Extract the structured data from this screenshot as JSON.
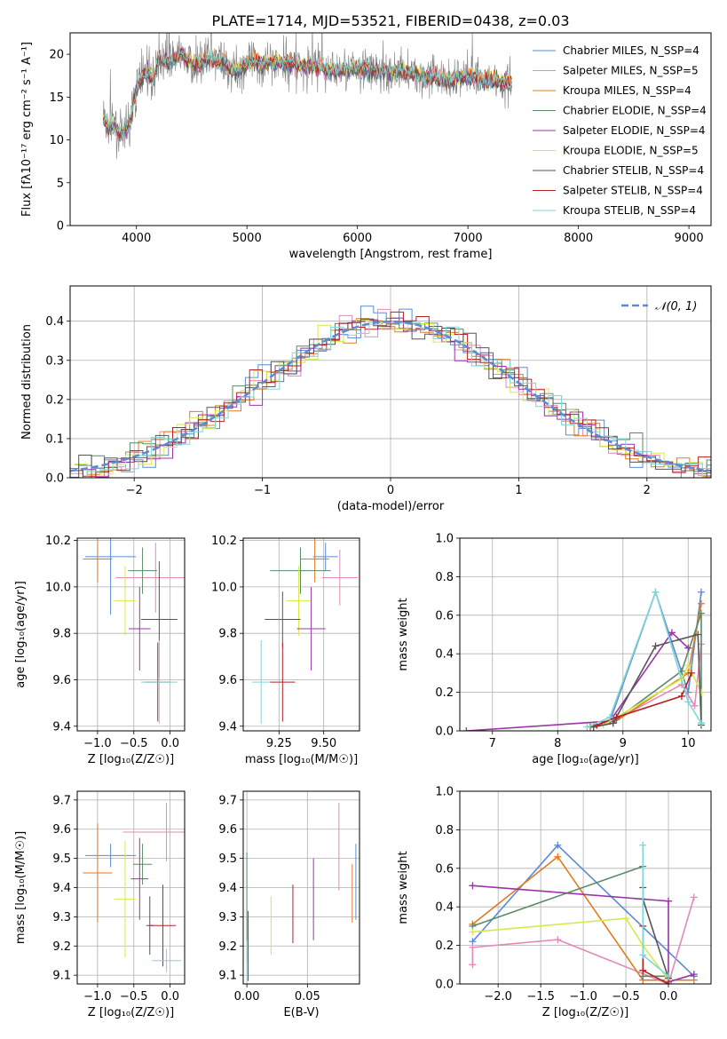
{
  "figure_title": "PLATE=1714, MJD=53521, FIBERID=0438, z=0.03",
  "colors": {
    "chabrier_miles": "#5b8bd6",
    "salpeter_miles": "#e38ab8",
    "kroupa_miles": "#e07b24",
    "chabrier_elodie": "#5a8a66",
    "salpeter_elodie": "#9a35a8",
    "kroupa_elodie": "#d8e84a",
    "chabrier_stelib": "#555555",
    "salpeter_stelib": "#b52222",
    "kroupa_stelib": "#7fd6d6",
    "data_gray": "#808080",
    "normal_dash": "#5b8bd6",
    "grid": "#b0b0b0"
  },
  "legend_spectrum": [
    {
      "label": "Chabrier MILES, N_SSP=4",
      "color_key": "chabrier_miles"
    },
    {
      "label": "Salpeter MILES, N_SSP=5",
      "color_key": "salpeter_miles"
    },
    {
      "label": "Kroupa MILES, N_SSP=4",
      "color_key": "kroupa_miles"
    },
    {
      "label": "Chabrier ELODIE, N_SSP=4",
      "color_key": "chabrier_elodie"
    },
    {
      "label": "Salpeter ELODIE, N_SSP=4",
      "color_key": "salpeter_elodie"
    },
    {
      "label": "Kroupa ELODIE, N_SSP=5",
      "color_key": "kroupa_elodie"
    },
    {
      "label": "Chabrier STELIB, N_SSP=4",
      "color_key": "chabrier_stelib"
    },
    {
      "label": "Salpeter STELIB, N_SSP=4",
      "color_key": "salpeter_stelib"
    },
    {
      "label": "Kroupa STELIB, N_SSP=4",
      "color_key": "kroupa_stelib"
    }
  ],
  "legend_hist": "𝒩(0, 1)",
  "chart_data": [
    {
      "id": "spectrum",
      "type": "line",
      "xlabel": "wavelength [Angstrom, rest frame]",
      "ylabel": "Flux [fλ10⁻¹⁷ erg cm⁻² s⁻¹ A⁻¹]",
      "xlim": [
        3400,
        9200
      ],
      "ylim": [
        0,
        22.5
      ],
      "xticks": [
        4000,
        5000,
        6000,
        7000,
        8000,
        9000
      ],
      "yticks": [
        0,
        5,
        10,
        15,
        20
      ],
      "grid": false,
      "legend_position": "top-right",
      "x": [
        3700,
        3750,
        3800,
        3850,
        3900,
        3950,
        4000,
        4050,
        4100,
        4150,
        4200,
        4300,
        4400,
        4500,
        4600,
        4700,
        4800,
        4900,
        5000,
        5200,
        5400,
        5600,
        5800,
        6000,
        6200,
        6400,
        6600,
        6800,
        7000,
        7200,
        7400
      ],
      "y": [
        12.5,
        11.5,
        12.0,
        10.5,
        11.0,
        12.5,
        16.0,
        17.5,
        18.0,
        17.0,
        19.5,
        19.0,
        20.0,
        19.0,
        19.0,
        19.5,
        19.0,
        18.0,
        19.0,
        19.0,
        19.0,
        18.5,
        18.0,
        18.5,
        18.0,
        18.0,
        17.5,
        17.0,
        17.5,
        17.0,
        16.5
      ]
    },
    {
      "id": "residuals",
      "type": "histogram",
      "xlabel": "(data-model)/error",
      "ylabel": "Normed distribution",
      "xlim": [
        -2.5,
        2.5
      ],
      "ylim": [
        0,
        0.49
      ],
      "xticks": [
        -2,
        -1,
        0,
        1,
        2
      ],
      "yticks": [
        0.0,
        0.1,
        0.2,
        0.3,
        0.4
      ],
      "grid": true,
      "legend_position": "top-right",
      "bin_edges_start": -2.5,
      "bin_width": 0.1,
      "normal_curve": {
        "mu": 0,
        "sigma": 1
      }
    },
    {
      "id": "age_vs_Z",
      "type": "errorbar",
      "xlabel": "Z [log₁₀(Z/Z☉)]",
      "ylabel": "age  [log₁₀(age/yr)]",
      "xlim": [
        -1.28,
        0.2
      ],
      "ylim": [
        9.38,
        10.21
      ],
      "xticks": [
        -1.0,
        -0.5,
        0.0
      ],
      "yticks": [
        9.4,
        9.6,
        9.8,
        10.0,
        10.2
      ],
      "grid": true,
      "points": [
        {
          "series": "chabrier_miles",
          "x": -0.82,
          "y": 10.13,
          "xerr": 0.35,
          "yerr": 0.25
        },
        {
          "series": "kroupa_miles",
          "x": -1.0,
          "y": 10.12,
          "xerr": 0.2,
          "yerr": 0.1
        },
        {
          "series": "salpeter_miles",
          "x": -0.2,
          "y": 10.04,
          "xerr": 0.55,
          "yerr": 0.15
        },
        {
          "series": "chabrier_elodie",
          "x": -0.38,
          "y": 10.07,
          "xerr": 0.2,
          "yerr": 0.1
        },
        {
          "series": "kroupa_elodie",
          "x": -0.62,
          "y": 9.94,
          "xerr": 0.15,
          "yerr": 0.15
        },
        {
          "series": "salpeter_elodie",
          "x": -0.42,
          "y": 9.82,
          "xerr": 0.15,
          "yerr": 0.18
        },
        {
          "series": "chabrier_stelib",
          "x": -0.15,
          "y": 9.86,
          "xerr": 0.25,
          "yerr": 0.25
        },
        {
          "series": "salpeter_stelib",
          "x": -0.17,
          "y": 9.59,
          "xerr": 0.18,
          "yerr": 0.17
        },
        {
          "series": "kroupa_stelib",
          "x": -0.15,
          "y": 9.59,
          "xerr": 0.25,
          "yerr": 0.18
        }
      ]
    },
    {
      "id": "age_vs_mass",
      "type": "errorbar",
      "xlabel": "mass [log₁₀(M/M☉)]",
      "ylabel": "",
      "xlim": [
        9.05,
        9.7
      ],
      "ylim": [
        9.38,
        10.21
      ],
      "xticks": [
        9.25,
        9.5
      ],
      "yticks": [
        9.4,
        9.6,
        9.8,
        10.0,
        10.2
      ],
      "grid": true,
      "points": [
        {
          "series": "chabrier_miles",
          "x": 9.51,
          "y": 10.13,
          "xerr": 0.07,
          "yerr": 0.06
        },
        {
          "series": "kroupa_miles",
          "x": 9.45,
          "y": 10.12,
          "xerr": 0.08,
          "yerr": 0.1
        },
        {
          "series": "salpeter_miles",
          "x": 9.59,
          "y": 10.04,
          "xerr": 0.1,
          "yerr": 0.12
        },
        {
          "series": "chabrier_elodie",
          "x": 9.37,
          "y": 10.07,
          "xerr": 0.17,
          "yerr": 0.1
        },
        {
          "series": "kroupa_elodie",
          "x": 9.36,
          "y": 9.94,
          "xerr": 0.07,
          "yerr": 0.15
        },
        {
          "series": "salpeter_elodie",
          "x": 9.43,
          "y": 9.82,
          "xerr": 0.08,
          "yerr": 0.18
        },
        {
          "series": "chabrier_stelib",
          "x": 9.27,
          "y": 9.86,
          "xerr": 0.1,
          "yerr": 0.12
        },
        {
          "series": "salpeter_stelib",
          "x": 9.27,
          "y": 9.59,
          "xerr": 0.07,
          "yerr": 0.17
        },
        {
          "series": "kroupa_stelib",
          "x": 9.15,
          "y": 9.59,
          "xerr": 0.05,
          "yerr": 0.18
        }
      ]
    },
    {
      "id": "weight_vs_age",
      "type": "line",
      "xlabel": "age  [log₁₀(age/yr)]",
      "ylabel": "mass weight",
      "xlim": [
        6.5,
        10.35
      ],
      "ylim": [
        0,
        1.0
      ],
      "xticks": [
        7,
        8,
        9,
        10
      ],
      "yticks": [
        0.0,
        0.2,
        0.4,
        0.6,
        0.8,
        1.0
      ],
      "grid": true,
      "series": [
        {
          "series": "chabrier_miles",
          "x": [
            8.5,
            8.8,
            9.5,
            10.0,
            10.2
          ],
          "y": [
            0.02,
            0.05,
            0.72,
            0.2,
            0.72
          ]
        },
        {
          "series": "salpeter_miles",
          "x": [
            8.6,
            8.9,
            9.9,
            10.1,
            10.2
          ],
          "y": [
            0.03,
            0.06,
            0.24,
            0.13,
            0.45
          ]
        },
        {
          "series": "kroupa_miles",
          "x": [
            8.5,
            8.85,
            10.0,
            10.2
          ],
          "y": [
            0.02,
            0.04,
            0.3,
            0.66
          ]
        },
        {
          "series": "chabrier_elodie",
          "x": [
            8.6,
            8.9,
            9.9,
            10.2,
            10.2
          ],
          "y": [
            0.03,
            0.06,
            0.31,
            0.61,
            0.04
          ]
        },
        {
          "series": "salpeter_elodie",
          "x": [
            6.6,
            8.8,
            9.75,
            10.0
          ],
          "y": [
            0.0,
            0.05,
            0.51,
            0.43
          ]
        },
        {
          "series": "kroupa_elodie",
          "x": [
            8.7,
            8.9,
            9.9,
            10.0,
            10.2
          ],
          "y": [
            0.03,
            0.07,
            0.27,
            0.34,
            0.2
          ]
        },
        {
          "series": "chabrier_stelib",
          "x": [
            8.55,
            8.85,
            9.5,
            10.15,
            10.2
          ],
          "y": [
            0.02,
            0.04,
            0.44,
            0.5,
            0.03
          ]
        },
        {
          "series": "salpeter_stelib",
          "x": [
            8.6,
            8.9,
            9.9,
            10.05
          ],
          "y": [
            0.03,
            0.07,
            0.18,
            0.3
          ]
        },
        {
          "series": "kroupa_stelib",
          "x": [
            8.45,
            8.8,
            9.5,
            10.0,
            10.2
          ],
          "y": [
            0.02,
            0.07,
            0.72,
            0.15,
            0.04
          ]
        }
      ]
    },
    {
      "id": "mass_vs_Z",
      "type": "errorbar",
      "xlabel": "Z [log₁₀(Z/Z☉)]",
      "ylabel": "mass [log₁₀(M/M☉)]",
      "xlim": [
        -1.28,
        0.2
      ],
      "ylim": [
        9.07,
        9.73
      ],
      "xticks": [
        -1.0,
        -0.5,
        0.0
      ],
      "yticks": [
        9.1,
        9.2,
        9.3,
        9.4,
        9.5,
        9.6,
        9.7
      ],
      "grid": true,
      "points": [
        {
          "series": "chabrier_miles",
          "x": -0.82,
          "y": 9.51,
          "xerr": 0.35,
          "yerr": 0.04
        },
        {
          "series": "kroupa_miles",
          "x": -1.0,
          "y": 9.45,
          "xerr": 0.2,
          "yerr": 0.17
        },
        {
          "series": "salpeter_miles",
          "x": -0.05,
          "y": 9.59,
          "xerr": 0.6,
          "yerr": 0.1
        },
        {
          "series": "chabrier_elodie",
          "x": -0.38,
          "y": 9.48,
          "xerr": 0.13,
          "yerr": 0.07
        },
        {
          "series": "kroupa_elodie",
          "x": -0.62,
          "y": 9.36,
          "xerr": 0.15,
          "yerr": 0.2
        },
        {
          "series": "salpeter_elodie",
          "x": -0.42,
          "y": 9.43,
          "xerr": 0.12,
          "yerr": 0.14
        },
        {
          "series": "chabrier_stelib",
          "x": -0.28,
          "y": 9.27,
          "xerr": 0.05,
          "yerr": 0.1
        },
        {
          "series": "salpeter_stelib",
          "x": -0.1,
          "y": 9.27,
          "xerr": 0.18,
          "yerr": 0.14
        },
        {
          "series": "kroupa_stelib",
          "x": -0.05,
          "y": 9.15,
          "xerr": 0.2,
          "yerr": 0.04
        }
      ]
    },
    {
      "id": "mass_vs_ebv",
      "type": "errorbar",
      "xlabel": "E(B-V)",
      "ylabel": "",
      "xlim": [
        -0.003,
        0.093
      ],
      "ylim": [
        9.07,
        9.73
      ],
      "xticks": [
        0.0,
        0.05
      ],
      "yticks": [
        9.1,
        9.2,
        9.3,
        9.4,
        9.5,
        9.6,
        9.7
      ],
      "grid": true,
      "points": [
        {
          "series": "chabrier_miles",
          "x": 0.09,
          "y": 9.42,
          "xerr": 0,
          "yerr": 0.13
        },
        {
          "series": "kroupa_miles",
          "x": 0.087,
          "y": 9.38,
          "xerr": 0,
          "yerr": 0.1
        },
        {
          "series": "salpeter_miles",
          "x": 0.076,
          "y": 9.54,
          "xerr": 0,
          "yerr": 0.15
        },
        {
          "series": "chabrier_elodie",
          "x": 0.0,
          "y": 9.33,
          "xerr": 0,
          "yerr": 0.19
        },
        {
          "series": "kroupa_elodie",
          "x": 0.02,
          "y": 9.27,
          "xerr": 0,
          "yerr": 0.1
        },
        {
          "series": "salpeter_elodie",
          "x": 0.055,
          "y": 9.36,
          "xerr": 0,
          "yerr": 0.14
        },
        {
          "series": "chabrier_stelib",
          "x": 0.001,
          "y": 9.2,
          "xerr": 0,
          "yerr": 0.12
        },
        {
          "series": "salpeter_stelib",
          "x": 0.038,
          "y": 9.31,
          "xerr": 0,
          "yerr": 0.1
        },
        {
          "series": "kroupa_stelib",
          "x": 0.0,
          "y": 9.15,
          "xerr": 0,
          "yerr": 0.07
        }
      ]
    },
    {
      "id": "weight_vs_Z",
      "type": "line",
      "xlabel": "Z [log₁₀(Z/Z☉)]",
      "ylabel": "mass weight",
      "xlim": [
        -2.45,
        0.5
      ],
      "ylim": [
        0,
        1.0
      ],
      "xticks": [
        -2.0,
        -1.5,
        -1.0,
        -0.5,
        0.0
      ],
      "yticks": [
        0.0,
        0.2,
        0.4,
        0.6,
        0.8,
        1.0
      ],
      "grid": true,
      "series": [
        {
          "series": "chabrier_miles",
          "x": [
            -2.3,
            -1.3,
            0.3
          ],
          "y": [
            0.22,
            0.72,
            0.04
          ]
        },
        {
          "series": "salpeter_miles",
          "x": [
            -2.3,
            -2.3,
            -1.3,
            0.0,
            0.3
          ],
          "y": [
            0.1,
            0.19,
            0.23,
            0.0,
            0.45
          ]
        },
        {
          "series": "kroupa_miles",
          "x": [
            -2.3,
            -1.3,
            -0.3,
            0.0,
            0.3
          ],
          "y": [
            0.31,
            0.66,
            0.02,
            0.02,
            0.02
          ]
        },
        {
          "series": "chabrier_elodie",
          "x": [
            -2.3,
            -0.3,
            -0.3,
            0.0
          ],
          "y": [
            0.3,
            0.61,
            0.04,
            0.04
          ]
        },
        {
          "series": "salpeter_elodie",
          "x": [
            -2.3,
            0.0,
            0.0,
            0.3
          ],
          "y": [
            0.51,
            0.43,
            0.01,
            0.05
          ]
        },
        {
          "series": "kroupa_elodie",
          "x": [
            -2.3,
            -0.5,
            -0.3,
            0.0
          ],
          "y": [
            0.27,
            0.34,
            0.2,
            0.02
          ]
        },
        {
          "series": "chabrier_stelib",
          "x": [
            -0.3,
            -0.3,
            0.0
          ],
          "y": [
            0.5,
            0.44,
            0.03
          ]
        },
        {
          "series": "salpeter_stelib",
          "x": [
            -0.3,
            -0.3,
            0.0
          ],
          "y": [
            0.3,
            0.07,
            0.0
          ]
        },
        {
          "series": "kroupa_stelib",
          "x": [
            -0.3,
            -0.3,
            0.0
          ],
          "y": [
            0.72,
            0.15,
            0.04
          ]
        }
      ]
    }
  ]
}
